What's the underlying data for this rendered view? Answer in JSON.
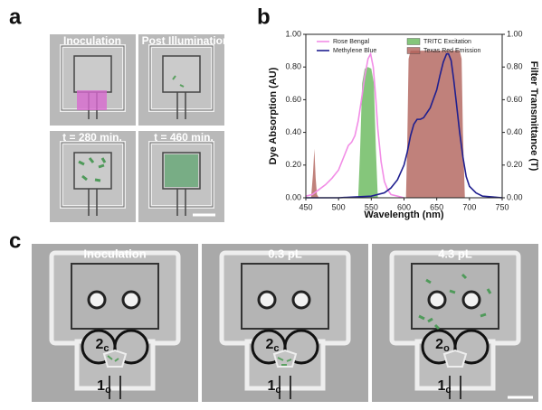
{
  "panels": {
    "a": {
      "label": "a",
      "images": [
        {
          "title": "Inoculation"
        },
        {
          "title": "Post Illumination"
        },
        {
          "title": "t = 280 min."
        },
        {
          "title": "t = 460 min."
        }
      ]
    },
    "b": {
      "label": "b"
    },
    "c": {
      "label": "c",
      "images": [
        {
          "title": "Inoculation",
          "labels": [
            {
              "main": "2",
              "sub": "c"
            },
            {
              "main": "1",
              "sub": "o"
            }
          ]
        },
        {
          "title": "0.3 pL",
          "labels": [
            {
              "main": "2",
              "sub": "c"
            },
            {
              "main": "1",
              "sub": "c"
            }
          ]
        },
        {
          "title": "4.3 pL",
          "labels": [
            {
              "main": "2",
              "sub": "o"
            },
            {
              "main": "1",
              "sub": "c"
            }
          ]
        }
      ]
    }
  },
  "chart_data": {
    "type": "line",
    "xlabel": "Wavelength (nm)",
    "ylabel": "Dye Absorption (AU)",
    "y2label": "Filter Transmittance (T)",
    "xlim": [
      450,
      750
    ],
    "xticks": [
      450,
      500,
      550,
      600,
      650,
      700,
      750
    ],
    "ylim": [
      0,
      1
    ],
    "yticks": [
      {
        "value": 0,
        "label": "0.00"
      },
      {
        "value": 0.2,
        "label": "0.20"
      },
      {
        "value": 0.4,
        "label": "0.40"
      },
      {
        "value": 0.6,
        "label": "0.60"
      },
      {
        "value": 0.8,
        "label": "0.80"
      },
      {
        "value": 1,
        "label": "1.00"
      }
    ],
    "y2lim": [
      0,
      1
    ],
    "y2ticks": [
      {
        "value": 0,
        "label": "0.00"
      },
      {
        "value": 0.2,
        "label": "0.20"
      },
      {
        "value": 0.4,
        "label": "0.40"
      },
      {
        "value": 0.6,
        "label": "0.60"
      },
      {
        "value": 0.8,
        "label": "0.80"
      },
      {
        "value": 1,
        "label": "1.00"
      }
    ],
    "series": [
      {
        "name": "Rose Bengal",
        "color": "#f28de6",
        "kind": "line",
        "x": [
          450,
          460,
          470,
          480,
          490,
          500,
          510,
          515,
          520,
          525,
          530,
          535,
          540,
          545,
          549,
          553,
          557,
          560,
          565,
          570,
          575,
          580,
          590,
          600
        ],
        "values": [
          0.01,
          0.02,
          0.05,
          0.08,
          0.12,
          0.17,
          0.27,
          0.32,
          0.34,
          0.38,
          0.47,
          0.6,
          0.74,
          0.85,
          0.88,
          0.8,
          0.6,
          0.42,
          0.22,
          0.1,
          0.05,
          0.02,
          0.01,
          0
        ]
      },
      {
        "name": "Methylene Blue",
        "color": "#1f1f8f",
        "kind": "line",
        "x": [
          450,
          500,
          550,
          570,
          580,
          590,
          600,
          605,
          610,
          615,
          620,
          625,
          630,
          640,
          650,
          655,
          660,
          665,
          668,
          672,
          676,
          680,
          685,
          690,
          695,
          700,
          710,
          720,
          735,
          750
        ],
        "values": [
          0,
          0,
          0.01,
          0.03,
          0.06,
          0.11,
          0.2,
          0.28,
          0.38,
          0.45,
          0.48,
          0.48,
          0.49,
          0.55,
          0.66,
          0.75,
          0.83,
          0.88,
          0.88,
          0.84,
          0.72,
          0.58,
          0.4,
          0.25,
          0.13,
          0.07,
          0.03,
          0.01,
          0.005,
          0
        ]
      },
      {
        "name": "TRITC Excitation",
        "color": "#66b85a",
        "kind": "area",
        "axis": "y2",
        "x": [
          530,
          533,
          536,
          540,
          545,
          550,
          554,
          557,
          560
        ],
        "values": [
          0,
          0.3,
          0.7,
          0.79,
          0.8,
          0.79,
          0.7,
          0.3,
          0
        ]
      },
      {
        "name": "Texas Red Emission",
        "color": "#b0625a",
        "kind": "area",
        "axis": "y2",
        "x": [
          458,
          461,
          463,
          465,
          467,
          470,
          530,
          603,
          605,
          607,
          610,
          640,
          670,
          685,
          688,
          690,
          693
        ],
        "values": [
          0,
          0.15,
          0.3,
          0.12,
          0.02,
          0,
          null,
          0,
          0.35,
          0.85,
          0.9,
          0.9,
          0.9,
          0.9,
          0.85,
          0.4,
          0
        ]
      }
    ]
  }
}
